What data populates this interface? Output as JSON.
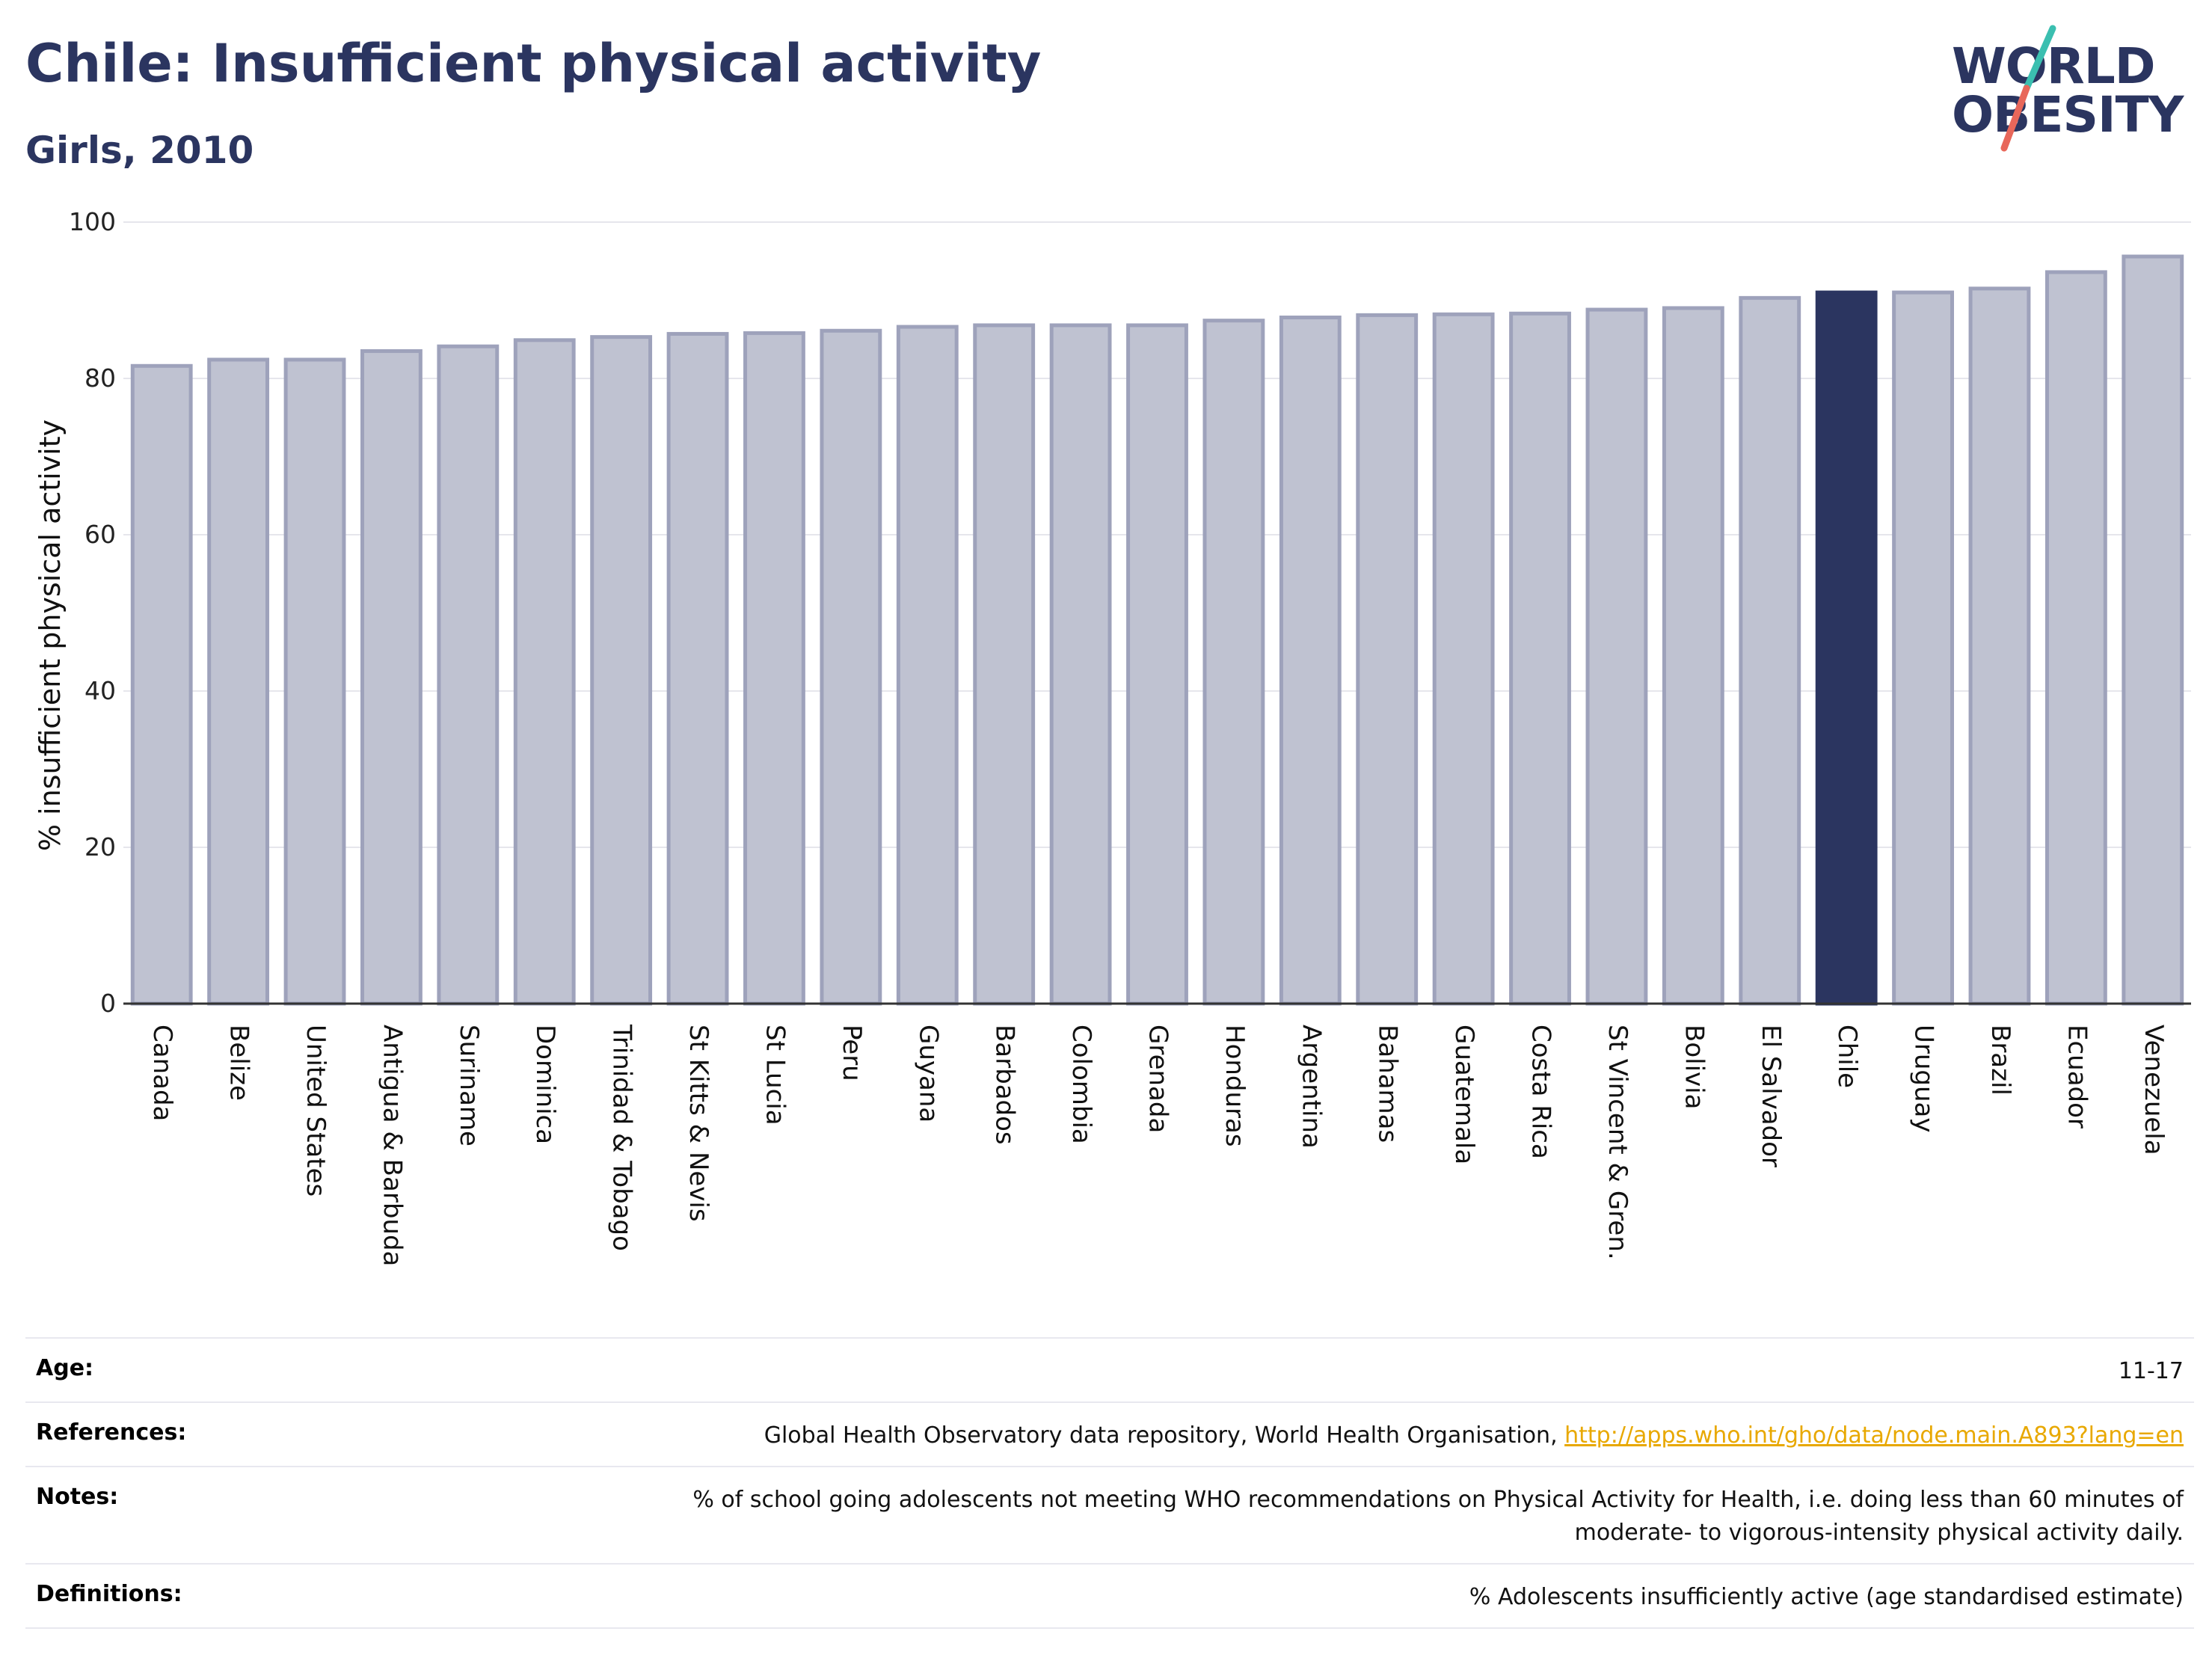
{
  "header": {
    "title": "Chile: Insufficient physical activity",
    "subtitle": "Girls, 2010"
  },
  "logo": {
    "line1": "WORLD",
    "line2": "OBESITY"
  },
  "colors": {
    "bar": "#bfc2d1",
    "bar_stroke": "#9ea2bb",
    "highlight": "#2b3560",
    "title": "#2b3560",
    "logo_teal": "#3bbfb0",
    "logo_coral": "#e8675a"
  },
  "chart_data": {
    "type": "bar",
    "title": "Chile: Insufficient physical activity",
    "subtitle": "Girls, 2010",
    "xlabel": "",
    "ylabel": "% insufficient physical activity",
    "ylim": [
      0,
      100
    ],
    "yticks": [
      0,
      20,
      40,
      60,
      80,
      100
    ],
    "grid": true,
    "highlight": "Chile",
    "categories": [
      "Canada",
      "Belize",
      "United States",
      "Antigua & Barbuda",
      "Suriname",
      "Dominica",
      "Trinidad & Tobago",
      "St Kitts & Nevis",
      "St Lucia",
      "Peru",
      "Guyana",
      "Barbados",
      "Colombia",
      "Grenada",
      "Honduras",
      "Argentina",
      "Bahamas",
      "Guatemala",
      "Costa Rica",
      "St Vincent & Gren.",
      "Bolivia",
      "El Salvador",
      "Chile",
      "Uruguay",
      "Brazil",
      "Ecuador",
      "Venezuela"
    ],
    "values": [
      81.6,
      82.4,
      82.4,
      83.5,
      84.1,
      84.9,
      85.3,
      85.7,
      85.8,
      86.1,
      86.6,
      86.8,
      86.8,
      86.8,
      87.4,
      87.8,
      88.1,
      88.2,
      88.3,
      88.8,
      89.0,
      90.3,
      91.0,
      91.0,
      91.5,
      93.6,
      95.6
    ]
  },
  "info": {
    "age_label": "Age:",
    "age_value": "11-17",
    "references_label": "References:",
    "references_text": "Global Health Observatory data repository, World Health Organisation, ",
    "references_link": "http://apps.who.int/gho/data/node.main.A893?lang=en",
    "notes_label": "Notes:",
    "notes_line1": "% of school going adolescents not meeting WHO recommendations on Physical Activity for Health, i.e. doing less than 60 minutes of",
    "notes_line2": "moderate- to vigorous-intensity physical activity daily.",
    "definitions_label": "Definitions:",
    "definitions_value": "% Adolescents insufficiently active (age standardised estimate)"
  }
}
